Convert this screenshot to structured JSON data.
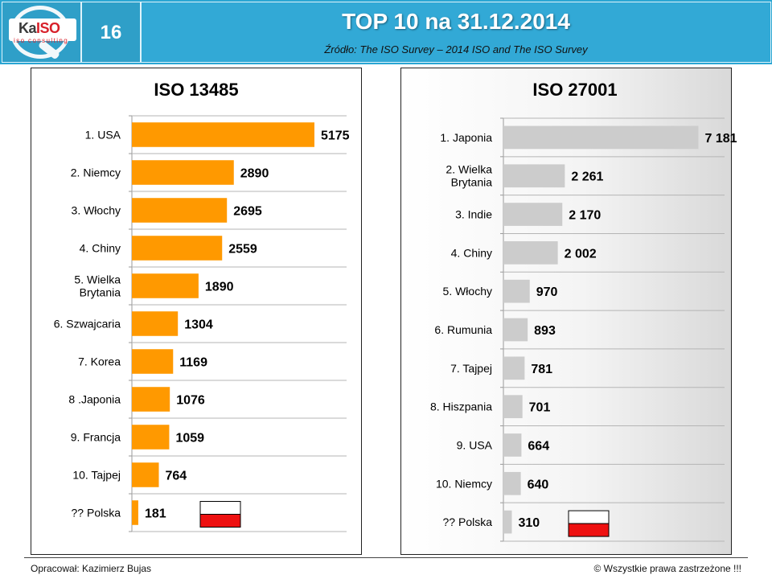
{
  "header": {
    "logo_text_a": "Ka",
    "logo_text_b": "ISO",
    "logo_sub": "iso consulting",
    "page_number": "16",
    "title": "TOP 10 na 31.12.2014",
    "subtitle": "Źródło: The ISO Survey – 2014   ISO and The ISO Survey"
  },
  "footer": {
    "author": "Opracował: Kazimierz Bujas",
    "rights": "© Wszystkie prawa zastrzeżone !!!"
  },
  "flag_icon": "poland-flag-icon",
  "colors": {
    "header": "#2aa6d3",
    "bar_iso13485": "#ff9900",
    "bar_iso27001": "#cccccc",
    "flag_white": "#ffffff",
    "flag_red": "#ee1111"
  },
  "chart_data": [
    {
      "type": "bar",
      "orientation": "horizontal",
      "title": "ISO 13485",
      "categories": [
        "1. USA",
        "2. Niemcy",
        "3. Włochy",
        "4. Chiny",
        "5. Wielka Brytania",
        "6. Szwajcaria",
        "7. Korea",
        "8 .Japonia",
        "9. Francja",
        "10. Tajpej",
        "?? Polska"
      ],
      "values": [
        5175,
        2890,
        2695,
        2559,
        1890,
        1304,
        1169,
        1076,
        1059,
        764,
        181
      ],
      "value_labels": [
        "5175",
        "2890",
        "2695",
        "2559",
        "1890",
        "1304",
        "1169",
        "1076",
        "1059",
        "764",
        "181"
      ],
      "xlim": [
        0,
        5700
      ],
      "grid": true,
      "legend": "none",
      "bar_color": "#ff9900"
    },
    {
      "type": "bar",
      "orientation": "horizontal",
      "title": "ISO 27001",
      "categories": [
        "1. Japonia",
        "2. Wielka Brytania",
        "3. Indie",
        "4. Chiny",
        "5. Włochy",
        "6. Rumunia",
        "7. Tajpej",
        "8. Hiszpania",
        "9. USA",
        "10. Niemcy",
        "?? Polska"
      ],
      "values": [
        7181,
        2261,
        2170,
        2002,
        970,
        893,
        781,
        701,
        664,
        640,
        310
      ],
      "value_labels": [
        "7 181",
        "2 261",
        "2 170",
        "2 002",
        "970",
        "893",
        "781",
        "701",
        "664",
        "640",
        "310"
      ],
      "xlim": [
        0,
        7700
      ],
      "grid": true,
      "legend": "none",
      "bar_color": "#cccccc"
    }
  ]
}
